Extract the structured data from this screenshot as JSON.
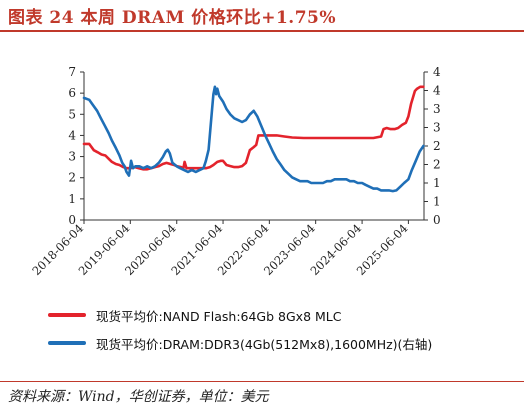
{
  "figure": {
    "title": "图表 24    本周 DRAM 价格环比+1.75%",
    "source": "资料来源：Wind，华创证券，单位：美元"
  },
  "colors": {
    "nand": "#e3232c",
    "dram": "#1f6fb7",
    "accent": "#c0392b",
    "axis": "#333333"
  },
  "chart_data": {
    "type": "line",
    "title": "",
    "xlabel": "",
    "ylabel": "",
    "y2label": "",
    "x_tick_labels": [
      "2018-06-04",
      "2019-06-04",
      "2020-06-04",
      "2021-06-04",
      "2022-06-04",
      "2023-06-04",
      "2024-06-04",
      "2025-06-04"
    ],
    "xlim": [
      "2018-06-04",
      "2025-10-05"
    ],
    "ylim": [
      0,
      7
    ],
    "y2lim": [
      0,
      4
    ],
    "y_ticks": [
      0,
      1,
      2,
      3,
      4,
      5,
      6,
      7
    ],
    "y2_ticks": [
      0,
      0.5,
      1,
      1.5,
      2,
      2.5,
      3,
      3.5,
      4
    ],
    "y2_tick_labels": [
      "0",
      "1",
      "1",
      "2",
      "2",
      "3",
      "3",
      "4",
      "4"
    ],
    "grid": false,
    "legend_position": "bottom",
    "series": [
      {
        "name": "现货平均价:NAND Flash:64Gb 8Gx8 MLC",
        "axis": "left",
        "color": "#e3232c",
        "points": [
          [
            "2018-06-04",
            3.6
          ],
          [
            "2018-07-15",
            3.6
          ],
          [
            "2018-08-20",
            3.3
          ],
          [
            "2018-09-20",
            3.2
          ],
          [
            "2018-10-20",
            3.1
          ],
          [
            "2018-11-20",
            3.05
          ],
          [
            "2018-12-15",
            2.9
          ],
          [
            "2019-01-10",
            2.75
          ],
          [
            "2019-02-10",
            2.65
          ],
          [
            "2019-03-10",
            2.6
          ],
          [
            "2019-04-10",
            2.5
          ],
          [
            "2019-05-10",
            2.45
          ],
          [
            "2019-06-04",
            2.45
          ],
          [
            "2019-07-10",
            2.5
          ],
          [
            "2019-08-10",
            2.45
          ],
          [
            "2019-09-15",
            2.4
          ],
          [
            "2019-10-15",
            2.4
          ],
          [
            "2019-11-15",
            2.45
          ],
          [
            "2019-12-15",
            2.5
          ],
          [
            "2020-01-15",
            2.55
          ],
          [
            "2020-02-15",
            2.65
          ],
          [
            "2020-03-15",
            2.7
          ],
          [
            "2020-04-15",
            2.65
          ],
          [
            "2020-05-15",
            2.6
          ],
          [
            "2020-06-04",
            2.55
          ],
          [
            "2020-07-10",
            2.5
          ],
          [
            "2020-07-25",
            2.4
          ],
          [
            "2020-08-05",
            2.75
          ],
          [
            "2020-08-20",
            2.45
          ],
          [
            "2020-09-20",
            2.45
          ],
          [
            "2020-10-20",
            2.45
          ],
          [
            "2020-11-20",
            2.45
          ],
          [
            "2020-12-20",
            2.45
          ],
          [
            "2021-01-20",
            2.45
          ],
          [
            "2021-02-20",
            2.5
          ],
          [
            "2021-03-20",
            2.6
          ],
          [
            "2021-04-20",
            2.75
          ],
          [
            "2021-05-20",
            2.8
          ],
          [
            "2021-06-04",
            2.8
          ],
          [
            "2021-07-01",
            2.6
          ],
          [
            "2021-08-01",
            2.55
          ],
          [
            "2021-09-01",
            2.5
          ],
          [
            "2021-10-01",
            2.5
          ],
          [
            "2021-11-01",
            2.55
          ],
          [
            "2021-12-01",
            2.7
          ],
          [
            "2022-01-01",
            3.3
          ],
          [
            "2022-02-01",
            3.45
          ],
          [
            "2022-02-20",
            3.55
          ],
          [
            "2022-03-10",
            4.0
          ],
          [
            "2022-04-01",
            4.0
          ],
          [
            "2022-05-01",
            4.0
          ],
          [
            "2022-06-04",
            4.0
          ],
          [
            "2022-08-01",
            4.0
          ],
          [
            "2022-10-01",
            3.95
          ],
          [
            "2022-12-01",
            3.9
          ],
          [
            "2023-03-01",
            3.88
          ],
          [
            "2023-06-04",
            3.88
          ],
          [
            "2023-09-01",
            3.88
          ],
          [
            "2023-12-01",
            3.88
          ],
          [
            "2024-03-01",
            3.88
          ],
          [
            "2024-06-01",
            3.88
          ],
          [
            "2024-09-01",
            3.88
          ],
          [
            "2024-11-01",
            3.95
          ],
          [
            "2024-11-20",
            4.3
          ],
          [
            "2024-12-15",
            4.35
          ],
          [
            "2025-01-15",
            4.3
          ],
          [
            "2025-02-15",
            4.3
          ],
          [
            "2025-03-15",
            4.35
          ],
          [
            "2025-04-15",
            4.5
          ],
          [
            "2025-05-15",
            4.6
          ],
          [
            "2025-06-04",
            4.9
          ],
          [
            "2025-06-25",
            5.5
          ],
          [
            "2025-07-10",
            5.8
          ],
          [
            "2025-07-25",
            6.1
          ],
          [
            "2025-08-10",
            6.2
          ],
          [
            "2025-09-05",
            6.3
          ],
          [
            "2025-09-30",
            6.3
          ]
        ]
      },
      {
        "name": "现货平均价:DRAM:DDR3(4Gb(512Mx8),1600MHz)(右轴)",
        "axis": "right",
        "color": "#1f6fb7",
        "points": [
          [
            "2018-06-04",
            3.3
          ],
          [
            "2018-07-15",
            3.25
          ],
          [
            "2018-08-15",
            3.1
          ],
          [
            "2018-09-15",
            2.95
          ],
          [
            "2018-10-15",
            2.75
          ],
          [
            "2018-11-15",
            2.55
          ],
          [
            "2018-12-15",
            2.35
          ],
          [
            "2019-01-10",
            2.15
          ],
          [
            "2019-02-10",
            1.95
          ],
          [
            "2019-03-10",
            1.75
          ],
          [
            "2019-04-01",
            1.55
          ],
          [
            "2019-04-20",
            1.45
          ],
          [
            "2019-05-05",
            1.3
          ],
          [
            "2019-05-25",
            1.2
          ],
          [
            "2019-06-10",
            1.6
          ],
          [
            "2019-06-25",
            1.4
          ],
          [
            "2019-07-15",
            1.45
          ],
          [
            "2019-08-15",
            1.45
          ],
          [
            "2019-09-15",
            1.4
          ],
          [
            "2019-10-15",
            1.45
          ],
          [
            "2019-11-15",
            1.4
          ],
          [
            "2019-12-15",
            1.45
          ],
          [
            "2020-01-15",
            1.55
          ],
          [
            "2020-02-15",
            1.7
          ],
          [
            "2020-03-10",
            1.85
          ],
          [
            "2020-03-25",
            1.9
          ],
          [
            "2020-04-10",
            1.8
          ],
          [
            "2020-05-01",
            1.55
          ],
          [
            "2020-06-04",
            1.45
          ],
          [
            "2020-07-01",
            1.4
          ],
          [
            "2020-08-01",
            1.35
          ],
          [
            "2020-09-01",
            1.3
          ],
          [
            "2020-10-01",
            1.35
          ],
          [
            "2020-11-01",
            1.3
          ],
          [
            "2020-12-01",
            1.35
          ],
          [
            "2021-01-01",
            1.4
          ],
          [
            "2021-01-20",
            1.6
          ],
          [
            "2021-02-10",
            1.9
          ],
          [
            "2021-02-25",
            2.5
          ],
          [
            "2021-03-10",
            3.0
          ],
          [
            "2021-03-20",
            3.4
          ],
          [
            "2021-04-01",
            3.6
          ],
          [
            "2021-04-10",
            3.4
          ],
          [
            "2021-04-20",
            3.55
          ],
          [
            "2021-05-05",
            3.35
          ],
          [
            "2021-06-04",
            3.2
          ],
          [
            "2021-07-01",
            3.0
          ],
          [
            "2021-08-01",
            2.85
          ],
          [
            "2021-09-01",
            2.75
          ],
          [
            "2021-10-01",
            2.7
          ],
          [
            "2021-11-01",
            2.65
          ],
          [
            "2021-12-01",
            2.7
          ],
          [
            "2022-01-01",
            2.85
          ],
          [
            "2022-02-01",
            2.95
          ],
          [
            "2022-03-01",
            2.8
          ],
          [
            "2022-04-01",
            2.55
          ],
          [
            "2022-05-01",
            2.3
          ],
          [
            "2022-06-04",
            2.05
          ],
          [
            "2022-07-01",
            1.85
          ],
          [
            "2022-08-01",
            1.65
          ],
          [
            "2022-09-01",
            1.5
          ],
          [
            "2022-10-01",
            1.35
          ],
          [
            "2022-11-01",
            1.25
          ],
          [
            "2022-12-01",
            1.15
          ],
          [
            "2023-01-01",
            1.1
          ],
          [
            "2023-02-01",
            1.05
          ],
          [
            "2023-03-01",
            1.05
          ],
          [
            "2023-04-01",
            1.05
          ],
          [
            "2023-05-01",
            1.0
          ],
          [
            "2023-06-04",
            1.0
          ],
          [
            "2023-07-01",
            1.0
          ],
          [
            "2023-08-01",
            1.0
          ],
          [
            "2023-09-01",
            1.05
          ],
          [
            "2023-10-01",
            1.05
          ],
          [
            "2023-11-01",
            1.1
          ],
          [
            "2023-12-01",
            1.1
          ],
          [
            "2024-01-01",
            1.1
          ],
          [
            "2024-02-01",
            1.1
          ],
          [
            "2024-03-01",
            1.05
          ],
          [
            "2024-04-01",
            1.05
          ],
          [
            "2024-05-01",
            1.0
          ],
          [
            "2024-06-04",
            1.0
          ],
          [
            "2024-07-01",
            0.95
          ],
          [
            "2024-08-01",
            0.9
          ],
          [
            "2024-09-01",
            0.85
          ],
          [
            "2024-10-01",
            0.85
          ],
          [
            "2024-11-01",
            0.8
          ],
          [
            "2024-12-01",
            0.8
          ],
          [
            "2025-01-01",
            0.8
          ],
          [
            "2025-02-01",
            0.78
          ],
          [
            "2025-03-01",
            0.8
          ],
          [
            "2025-04-01",
            0.9
          ],
          [
            "2025-05-01",
            1.0
          ],
          [
            "2025-06-04",
            1.1
          ],
          [
            "2025-07-01",
            1.35
          ],
          [
            "2025-08-01",
            1.6
          ],
          [
            "2025-09-01",
            1.85
          ],
          [
            "2025-09-30",
            2.0
          ]
        ]
      }
    ]
  }
}
